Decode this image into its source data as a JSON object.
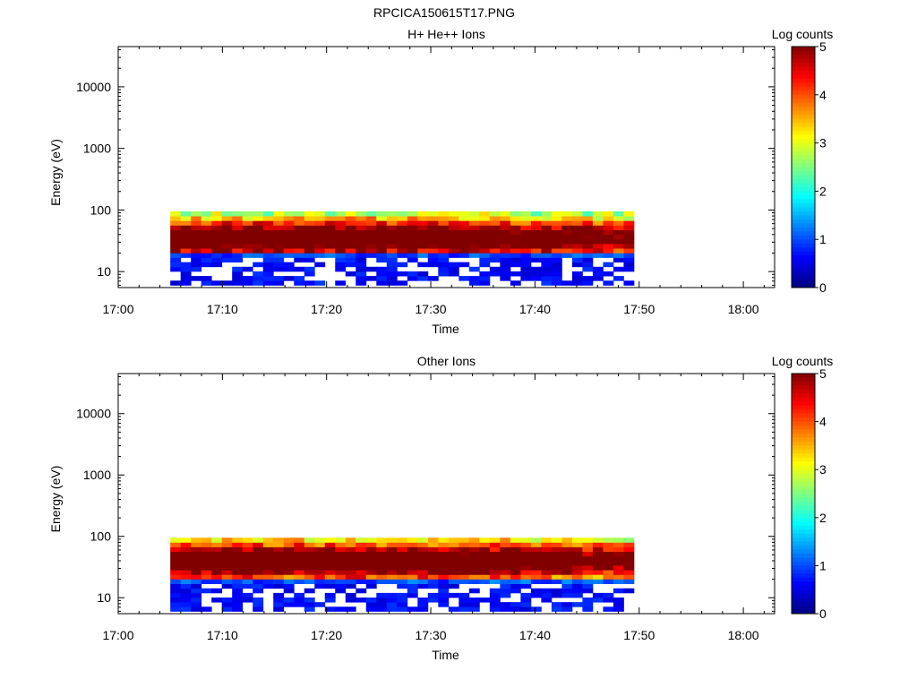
{
  "figure": {
    "title": "RPCICA150615T17.PNG"
  },
  "chart_data": [
    {
      "type": "heatmap",
      "title": "H+ He++ Ions",
      "xlabel": "Time",
      "ylabel": "Energy (eV)",
      "x_ticks": [
        "17:00",
        "17:10",
        "17:20",
        "17:30",
        "17:40",
        "17:50",
        "18:00"
      ],
      "xlim": [
        "17:00",
        "18:03"
      ],
      "y_scale": "log",
      "y_ticks": [
        "10",
        "100",
        "1000",
        "10000"
      ],
      "ylim": [
        5.5,
        45000
      ],
      "data_range": {
        "time_start": "17:05",
        "time_end": "17:49",
        "energy_min": 6,
        "energy_max": 95
      },
      "peak_energy": 35,
      "colorbar": {
        "label": "Log counts",
        "ticks": [
          "0",
          "1",
          "2",
          "3",
          "4",
          "5"
        ],
        "range": [
          0,
          5
        ],
        "colormap": "jet"
      }
    },
    {
      "type": "heatmap",
      "title": "Other Ions",
      "xlabel": "Time",
      "ylabel": "Energy (eV)",
      "x_ticks": [
        "17:00",
        "17:10",
        "17:20",
        "17:30",
        "17:40",
        "17:50",
        "18:00"
      ],
      "xlim": [
        "17:00",
        "18:03"
      ],
      "y_scale": "log",
      "y_ticks": [
        "10",
        "100",
        "1000",
        "10000"
      ],
      "ylim": [
        5.5,
        45000
      ],
      "data_range": {
        "time_start": "17:05",
        "time_end": "17:49",
        "energy_min": 6,
        "energy_max": 95
      },
      "peak_energy": 40,
      "colorbar": {
        "label": "Log counts",
        "ticks": [
          "0",
          "1",
          "2",
          "3",
          "4",
          "5"
        ],
        "range": [
          0,
          5
        ],
        "colormap": "jet"
      }
    }
  ]
}
